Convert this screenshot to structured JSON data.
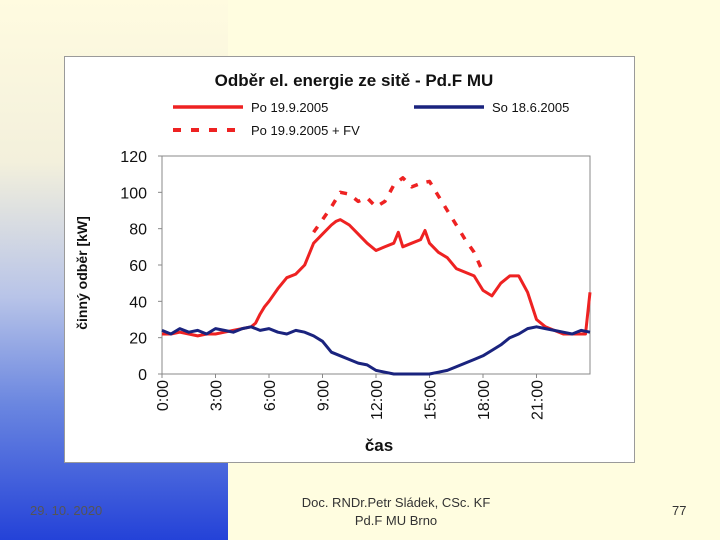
{
  "footer": {
    "date": "29. 10. 2020",
    "author_line1": "Doc. RNDr.Petr Sládek, CSc. KF",
    "author_line2": "Pd.F MU Brno",
    "page_number": "77"
  },
  "chart_data": {
    "type": "line",
    "title": "Odběr el. energie ze sitě - Pd.F MU",
    "xlabel": "čas",
    "ylabel": "činný odběr [kW]",
    "ylim": [
      0,
      120
    ],
    "yticks": [
      "0",
      "20",
      "40",
      "60",
      "80",
      "100",
      "120"
    ],
    "xticks": [
      {
        "label": "0:00",
        "hour": 0
      },
      {
        "label": "3:00",
        "hour": 3
      },
      {
        "label": "6:00",
        "hour": 6
      },
      {
        "label": "9:00",
        "hour": 9
      },
      {
        "label": "12:00",
        "hour": 12
      },
      {
        "label": "15:00",
        "hour": 15
      },
      {
        "label": "18:00",
        "hour": 18
      },
      {
        "label": "21:00",
        "hour": 21
      }
    ],
    "xlim": [
      0,
      24
    ],
    "grid": false,
    "legend_placement": "top",
    "series": [
      {
        "name": "Po 19.9.2005",
        "color": "#ee2222",
        "style": "solid",
        "x": [
          0,
          0.5,
          1,
          1.5,
          2,
          2.5,
          3,
          3.5,
          4,
          4.5,
          5,
          5.25,
          5.5,
          5.75,
          6,
          6.5,
          7,
          7.5,
          8,
          8.5,
          9,
          9.5,
          9.75,
          10,
          10.5,
          11,
          11.5,
          12,
          12.5,
          13,
          13.25,
          13.5,
          14,
          14.5,
          14.75,
          15,
          15.5,
          16,
          16.5,
          17,
          17.5,
          18,
          18.5,
          19,
          19.5,
          20,
          20.5,
          21,
          21.5,
          22,
          22.5,
          23,
          23.5,
          23.75,
          24
        ],
        "y": [
          22,
          22,
          23,
          22,
          21,
          22,
          22,
          23,
          24,
          25,
          26,
          28,
          33,
          37,
          40,
          47,
          53,
          55,
          60,
          72,
          77,
          82,
          84,
          85,
          82,
          77,
          72,
          68,
          70,
          72,
          78,
          70,
          72,
          74,
          79,
          72,
          67,
          64,
          58,
          56,
          54,
          46,
          43,
          50,
          54,
          54,
          45,
          30,
          26,
          24,
          22,
          22,
          22,
          22,
          45
        ]
      },
      {
        "name": "So 18.6.2005",
        "color": "#1a237e",
        "style": "solid",
        "x": [
          0,
          0.5,
          1,
          1.5,
          2,
          2.5,
          3,
          3.5,
          4,
          4.5,
          5,
          5.5,
          6,
          6.5,
          7,
          7.5,
          8,
          8.5,
          9,
          9.5,
          10,
          10.5,
          11,
          11.5,
          12,
          12.5,
          13,
          13.5,
          14,
          14.5,
          15,
          15.5,
          16,
          16.5,
          17,
          17.5,
          18,
          18.5,
          19,
          19.5,
          20,
          20.5,
          21,
          21.5,
          22,
          22.5,
          23,
          23.5,
          24
        ],
        "y": [
          24,
          22,
          25,
          23,
          24,
          22,
          25,
          24,
          23,
          25,
          26,
          24,
          25,
          23,
          22,
          24,
          23,
          21,
          18,
          12,
          10,
          8,
          6,
          5,
          2,
          1,
          0,
          0,
          0,
          0,
          0,
          1,
          2,
          4,
          6,
          8,
          10,
          13,
          16,
          20,
          22,
          25,
          26,
          25,
          24,
          23,
          22,
          24,
          23
        ]
      },
      {
        "name": "Po 19.9.2005 + FV",
        "color": "#ee2222",
        "style": "dashed",
        "x": [
          8.5,
          9,
          9.5,
          10,
          10.5,
          11,
          11.5,
          12,
          12.5,
          13,
          13.5,
          14,
          14.5,
          15,
          15.5,
          16,
          16.5,
          17,
          17.5,
          18
        ],
        "y": [
          78,
          85,
          92,
          100,
          99,
          95,
          97,
          92,
          95,
          104,
          108,
          103,
          105,
          106,
          98,
          90,
          82,
          74,
          67,
          56
        ]
      }
    ]
  }
}
